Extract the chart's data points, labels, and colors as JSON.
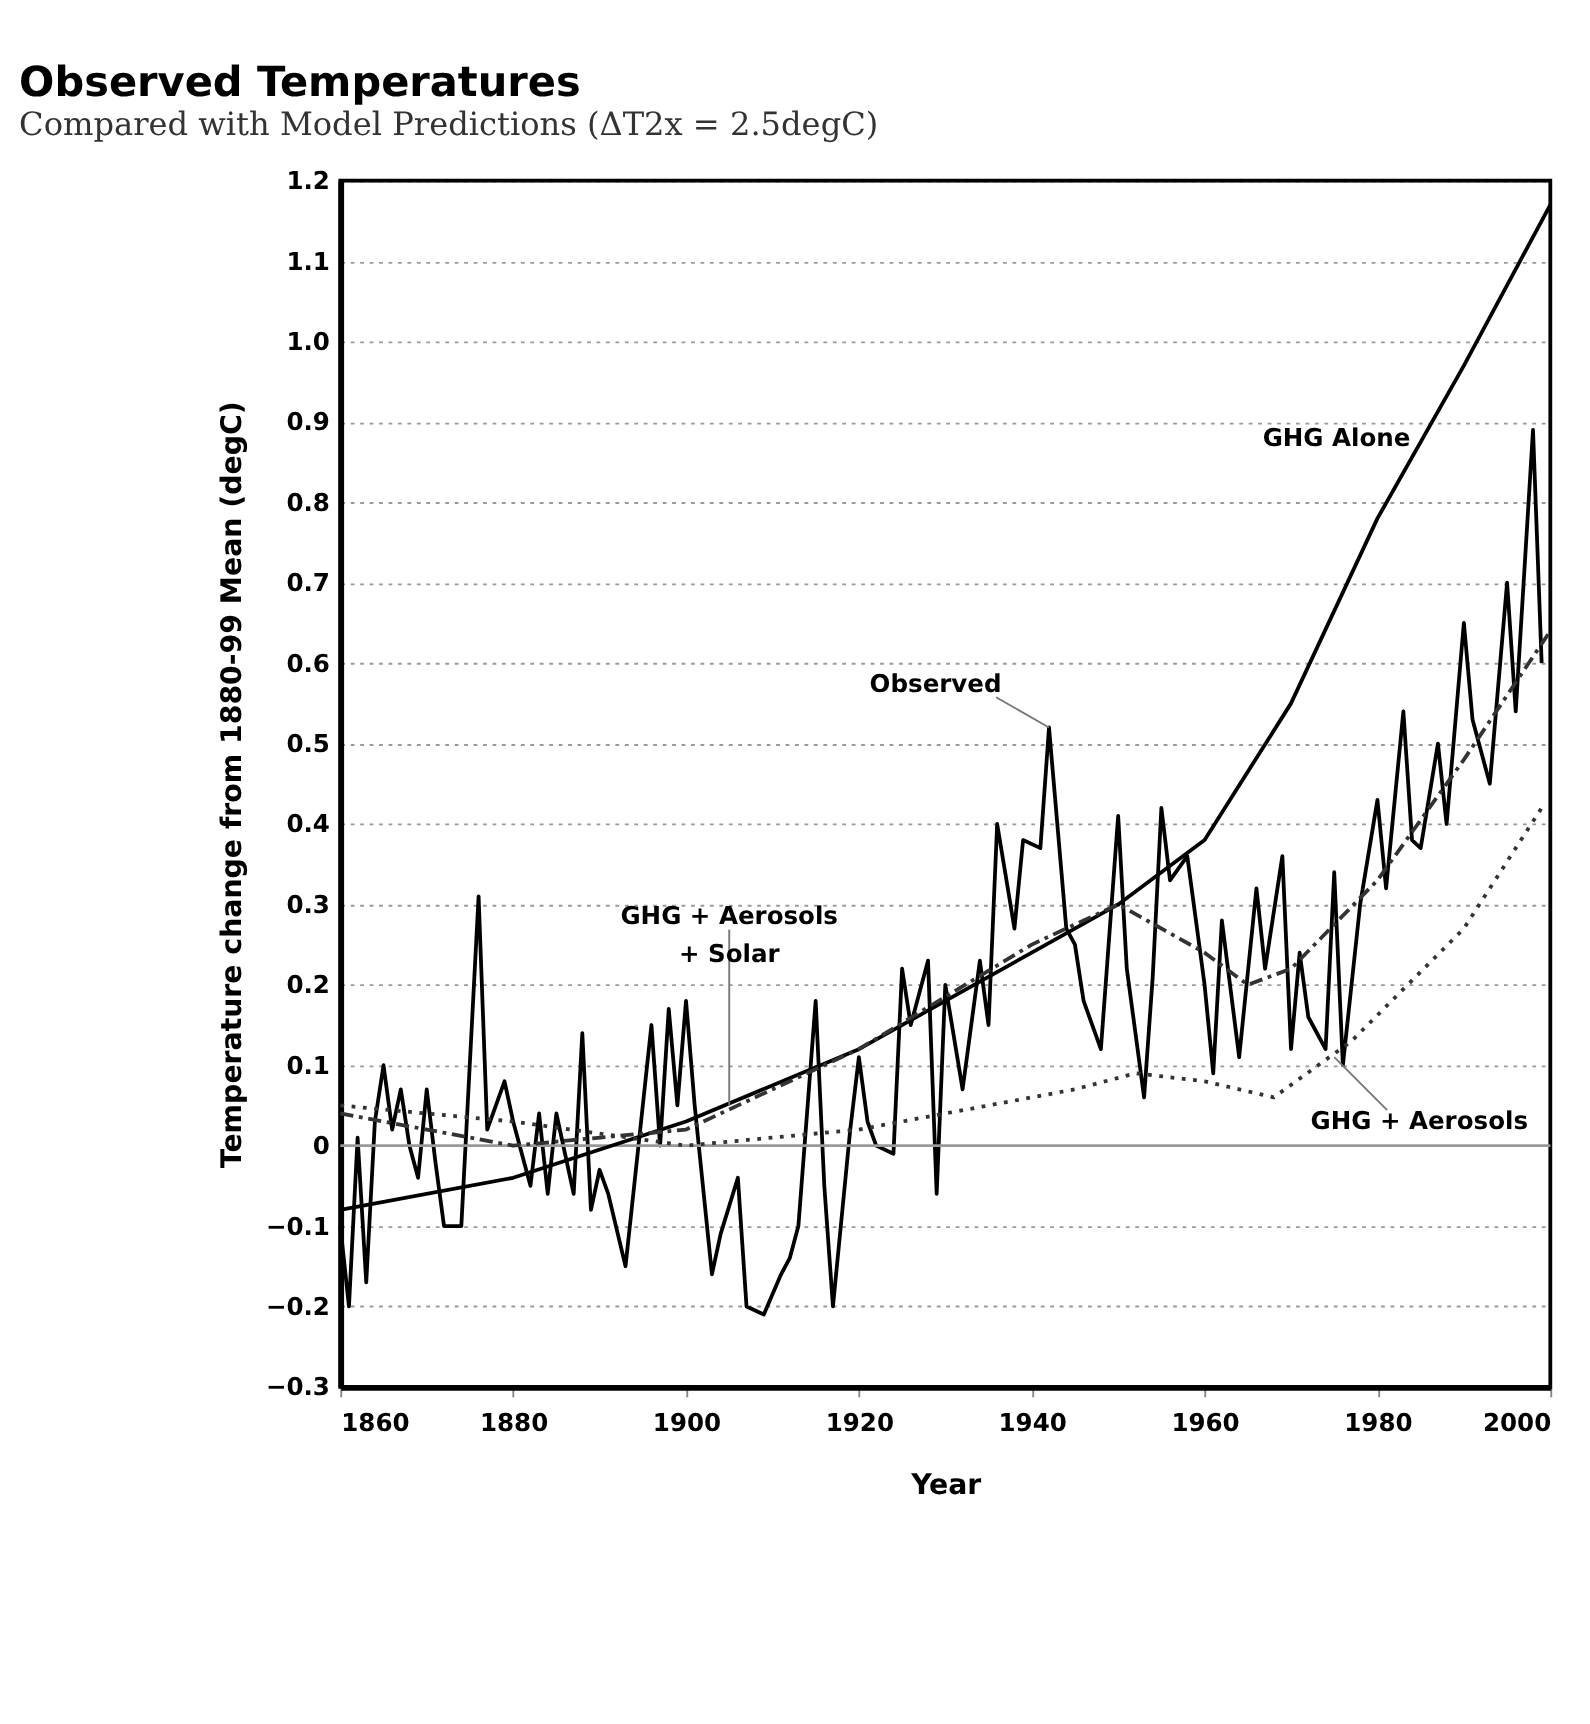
{
  "chart_data": {
    "type": "line",
    "title": "Observed Temperatures",
    "subtitle": "Compared with Model Predictions (ΔT2x = 2.5degC)",
    "xlabel": "Year",
    "ylabel": "Temperature change from 1880-99 Mean (degC)",
    "xlim": [
      1860,
      2000
    ],
    "xticks": [
      1860,
      1880,
      1900,
      1920,
      1940,
      1960,
      1980,
      2000
    ],
    "ylim": [
      -0.3,
      1.2
    ],
    "yticks": [
      -0.3,
      -0.2,
      -0.1,
      0,
      0.1,
      0.2,
      0.3,
      0.4,
      0.5,
      0.6,
      0.7,
      0.8,
      0.9,
      {
        "value": 1.0,
        "label": "1.0"
      },
      1.1,
      1.2
    ],
    "grid": "y",
    "marker": "none",
    "ref_lines": [
      {
        "axis": "y",
        "value": 0,
        "color": "#999999",
        "line_style": "solid"
      }
    ],
    "series": [
      {
        "color": "#000000",
        "line_style": "solid",
        "x": [
          1860,
          1861,
          1862,
          1863,
          1864,
          1865,
          1866,
          1867,
          1868,
          1869,
          1870,
          1871,
          1872,
          1874,
          1876,
          1877,
          1879,
          1880,
          1882,
          1883,
          1884,
          1885,
          1887,
          1888,
          1889,
          1890,
          1891,
          1893,
          1894,
          1896,
          1897,
          1898,
          1899,
          1900,
          1901,
          1903,
          1904,
          1906,
          1907,
          1909,
          1911,
          1912,
          1913,
          1915,
          1916,
          1917,
          1919,
          1920,
          1921,
          1922,
          1924,
          1925,
          1926,
          1928,
          1929,
          1930,
          1932,
          1934,
          1935,
          1936,
          1938,
          1939,
          1941,
          1942,
          1944,
          1945,
          1946,
          1948,
          1950,
          1951,
          1953,
          1954,
          1955,
          1956,
          1958,
          1960,
          1961,
          1962,
          1964,
          1966,
          1967,
          1969,
          1970,
          1971,
          1972,
          1974,
          1975,
          1976,
          1978,
          1980,
          1981,
          1983,
          1984,
          1985,
          1987,
          1988,
          1990,
          1991,
          1993,
          1995,
          1996,
          1998,
          1999
        ],
        "values": [
          -0.1,
          -0.2,
          0.01,
          -0.17,
          0.03,
          0.1,
          0.02,
          0.07,
          0.0,
          -0.04,
          0.07,
          -0.02,
          -0.1,
          -0.1,
          0.31,
          0.02,
          0.08,
          0.03,
          -0.05,
          0.04,
          -0.06,
          0.04,
          -0.06,
          0.14,
          -0.08,
          -0.03,
          -0.06,
          -0.15,
          -0.05,
          0.15,
          0.0,
          0.17,
          0.05,
          0.18,
          0.05,
          -0.16,
          -0.11,
          -0.04,
          -0.2,
          -0.21,
          -0.16,
          -0.14,
          -0.1,
          0.18,
          -0.05,
          -0.2,
          0.02,
          0.11,
          0.03,
          0.0,
          -0.01,
          0.22,
          0.15,
          0.23,
          -0.06,
          0.2,
          0.07,
          0.23,
          0.15,
          0.4,
          0.27,
          0.38,
          0.37,
          0.52,
          0.27,
          0.25,
          0.18,
          0.12,
          0.41,
          0.22,
          0.06,
          0.21,
          0.42,
          0.33,
          0.36,
          0.2,
          0.09,
          0.28,
          0.11,
          0.32,
          0.22,
          0.36,
          0.12,
          0.24,
          0.16,
          0.12,
          0.34,
          0.1,
          0.3,
          0.43,
          0.32,
          0.54,
          0.38,
          0.37,
          0.5,
          0.4,
          0.65,
          0.53,
          0.45,
          0.7,
          0.54,
          0.89,
          0.6
        ]
      },
      {
        "color": "#000000",
        "line_style": "solid",
        "x": [
          1860,
          1880,
          1900,
          1920,
          1940,
          1950,
          1960,
          1970,
          1980,
          1990,
          2000
        ],
        "values": [
          -0.08,
          -0.04,
          0.03,
          0.12,
          0.24,
          0.3,
          0.38,
          0.55,
          0.78,
          0.97,
          1.17
        ]
      },
      {
        "color": "#333333",
        "line_style": "dashed",
        "x": [
          1860,
          1880,
          1900,
          1920,
          1940,
          1950,
          1960,
          1965,
          1970,
          1980,
          1990,
          2000
        ],
        "values": [
          0.04,
          0.0,
          0.02,
          0.12,
          0.25,
          0.3,
          0.24,
          0.2,
          0.22,
          0.33,
          0.48,
          0.64
        ]
      },
      {
        "color": "#333333",
        "line_style": "dotted",
        "x": [
          1860,
          1880,
          1900,
          1920,
          1935,
          1945,
          1952,
          1960,
          1968,
          1977,
          1990,
          1999
        ],
        "values": [
          0.05,
          0.03,
          0.0,
          0.02,
          0.05,
          0.07,
          0.09,
          0.08,
          0.06,
          0.13,
          0.27,
          0.42
        ]
      }
    ],
    "annotations": [
      {
        "text": "GHG Alone",
        "x": 1986,
        "y": 0.88
      },
      {
        "text": "Observed",
        "x": 1942,
        "y": 0.52
      },
      {
        "text": "GHG + Aerosols\n+ Solar",
        "x": 1905,
        "y": 0.05
      },
      {
        "text": "GHG + Aerosols",
        "x": 1975,
        "y": 0.11
      }
    ]
  }
}
